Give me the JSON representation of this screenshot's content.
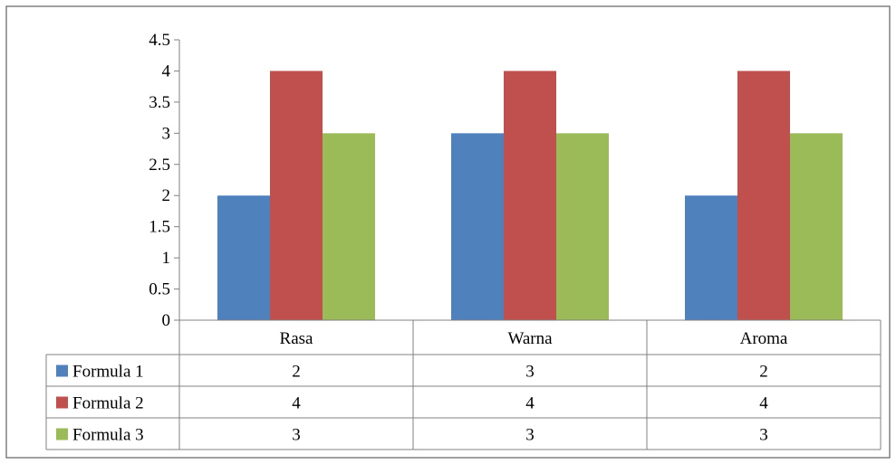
{
  "chart_data": {
    "type": "bar",
    "title": "",
    "xlabel": "",
    "ylabel": "",
    "categories": [
      "Rasa",
      "Warna",
      "Aroma"
    ],
    "series": [
      {
        "name": "Formula 1",
        "values": [
          2,
          3,
          2
        ],
        "color": "#4F81BD"
      },
      {
        "name": "Formula 2",
        "values": [
          4,
          4,
          4
        ],
        "color": "#C0504D"
      },
      {
        "name": "Formula 3",
        "values": [
          3,
          3,
          3
        ],
        "color": "#9BBB59"
      }
    ],
    "ylim": [
      0,
      4.5
    ],
    "yticks": [
      "0",
      "0.5",
      "1",
      "1.5",
      "2",
      "2.5",
      "3",
      "3.5",
      "4",
      "4.5"
    ],
    "grid": false,
    "legend": "data-table"
  }
}
